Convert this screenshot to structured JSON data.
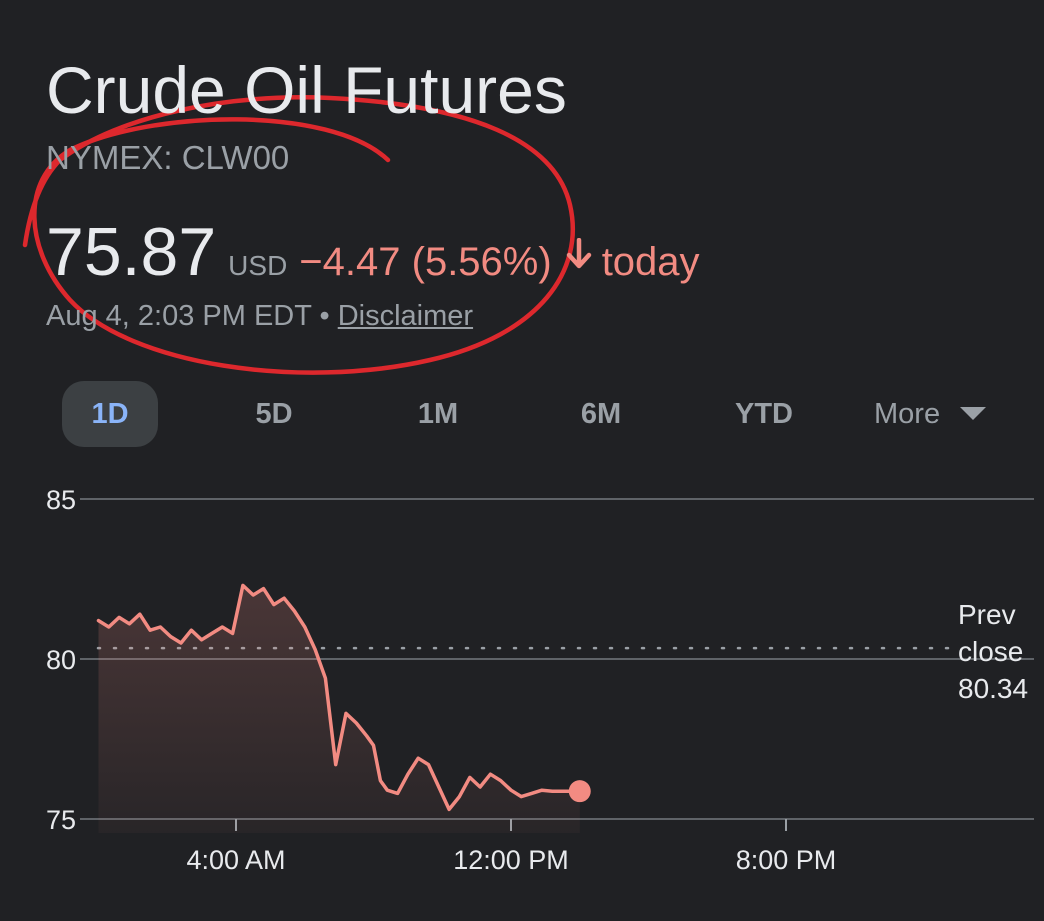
{
  "header": {
    "title": "Crude Oil Futures",
    "ticker": "NYMEX: CLW00"
  },
  "quote": {
    "price": "75.87",
    "currency": "USD",
    "change": "−4.47 (5.56%)",
    "direction_icon": "arrow-down-icon",
    "period": "today",
    "timestamp": "Aug 4, 2:03 PM EDT",
    "separator": "•",
    "disclaimer": "Disclaimer"
  },
  "tabs": [
    {
      "label": "1D",
      "active": true
    },
    {
      "label": "5D",
      "active": false
    },
    {
      "label": "1M",
      "active": false
    },
    {
      "label": "6M",
      "active": false
    },
    {
      "label": "YTD",
      "active": false
    }
  ],
  "more": {
    "label": "More",
    "icon": "caret-down-icon"
  },
  "prev_close": {
    "line1": "Prev",
    "line2": "close",
    "value": "80.34"
  },
  "colors": {
    "background": "#202124",
    "negative": "#f28b82",
    "active_tab_text": "#8ab4f8",
    "active_tab_bg": "#3c4043",
    "annotation": "#e8292e"
  },
  "chart_data": {
    "type": "line",
    "ylim": [
      75,
      85
    ],
    "yticks": [
      "85",
      "80",
      "75"
    ],
    "ytick_values": [
      85,
      80,
      75
    ],
    "xlim": [
      0,
      24
    ],
    "xticks": [
      "4:00 AM",
      "12:00 PM",
      "8:00 PM"
    ],
    "xtick_values": [
      4,
      12,
      20
    ],
    "reference_line": {
      "label": "Prev close",
      "value": 80.34
    },
    "grid": true,
    "series": [
      {
        "x": [
          0.0,
          0.3,
          0.6,
          0.9,
          1.2,
          1.5,
          1.8,
          2.1,
          2.4,
          2.7,
          3.0,
          3.3,
          3.6,
          3.9,
          4.2,
          4.5,
          4.8,
          5.1,
          5.4,
          5.7,
          6.0,
          6.3,
          6.6,
          6.9,
          7.2,
          7.5,
          7.8,
          8.0,
          8.2,
          8.4,
          8.7,
          9.0,
          9.3,
          9.6,
          9.9,
          10.2,
          10.5,
          10.8,
          11.1,
          11.4,
          11.7,
          12.0,
          12.3,
          12.6,
          12.9,
          13.2,
          13.5,
          13.8,
          14.0
        ],
        "y": [
          81.2,
          81.0,
          81.3,
          81.1,
          81.4,
          80.9,
          81.0,
          80.7,
          80.5,
          80.9,
          80.6,
          80.8,
          81.0,
          80.8,
          82.3,
          82.0,
          82.2,
          81.7,
          81.9,
          81.5,
          81.0,
          80.3,
          79.4,
          76.7,
          78.3,
          78.0,
          77.6,
          77.3,
          76.2,
          75.9,
          75.8,
          76.4,
          76.9,
          76.7,
          76.0,
          75.3,
          75.7,
          76.3,
          76.0,
          76.4,
          76.2,
          75.9,
          75.7,
          75.8,
          75.9,
          75.87,
          75.87,
          75.87,
          75.87
        ]
      }
    ],
    "current_point": {
      "x": 14.0,
      "y": 75.87
    }
  }
}
